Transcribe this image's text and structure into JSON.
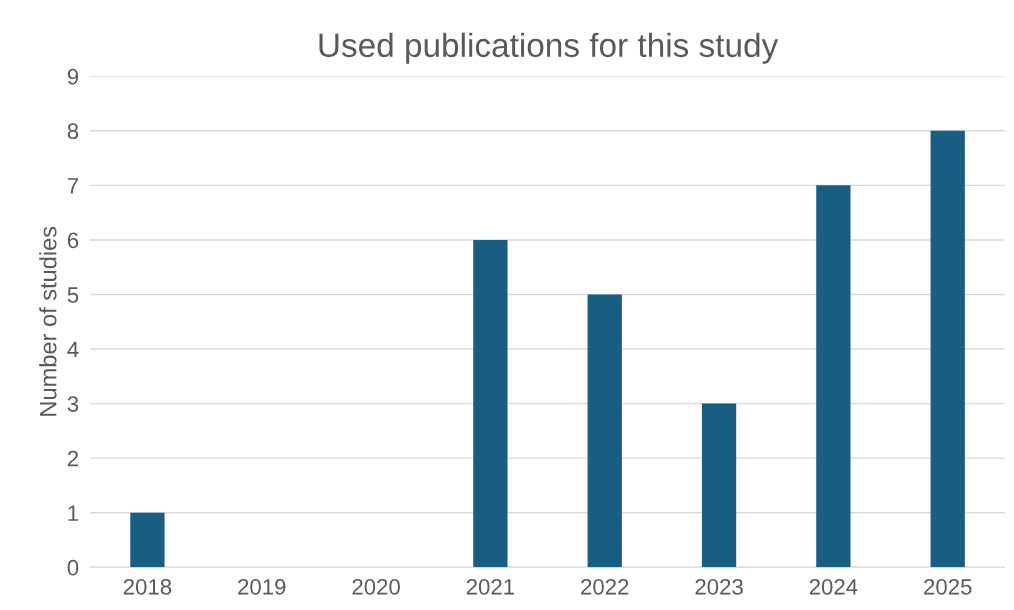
{
  "chart_data": {
    "type": "bar",
    "title": "Used publications for this study",
    "ylabel": "Number of studies",
    "categories": [
      "2018",
      "2019",
      "2020",
      "2021",
      "2022",
      "2023",
      "2024",
      "2025"
    ],
    "values": [
      1,
      0,
      0,
      6,
      5,
      3,
      7,
      8
    ],
    "color": "#175e82",
    "ylim": [
      0,
      9
    ],
    "yticks": [
      0,
      1,
      2,
      3,
      4,
      5,
      6,
      7,
      8,
      9
    ],
    "grid": "y",
    "legend": false
  }
}
